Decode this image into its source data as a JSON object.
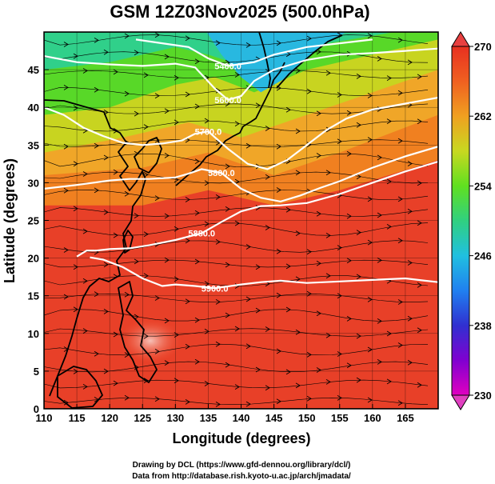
{
  "chart_data": {
    "type": "heatmap",
    "title": "GSM 12Z03Nov2025 (500.0hPa)",
    "xlabel": "Longitude (degrees)",
    "ylabel": "Latitude  (degrees)",
    "xlim": [
      110,
      170
    ],
    "ylim": [
      0,
      50
    ],
    "x_ticks": [
      "110",
      "115",
      "120",
      "125",
      "130",
      "135",
      "140",
      "145",
      "150",
      "155",
      "160",
      "165"
    ],
    "y_ticks": [
      "0",
      "5",
      "10",
      "15",
      "20",
      "25",
      "30",
      "35",
      "40",
      "45"
    ],
    "grid": true,
    "colorbar": {
      "position": "right",
      "min": 230,
      "max": 270,
      "ticks": [
        "270",
        "262",
        "254",
        "246",
        "238",
        "230"
      ],
      "colors": [
        "#e000c0",
        "#4020d0",
        "#2080f0",
        "#20c0e0",
        "#30d080",
        "#50e020",
        "#c0d820",
        "#f0a020",
        "#f06020",
        "#e83020"
      ]
    },
    "contours": [
      {
        "label": "5400.0",
        "points": [
          [
            124,
            49
          ],
          [
            128,
            48.5
          ],
          [
            132,
            48
          ],
          [
            135,
            46.5
          ],
          [
            138,
            45.5
          ],
          [
            142,
            46
          ],
          [
            145,
            47
          ],
          [
            150,
            48
          ],
          [
            155,
            48.5
          ],
          [
            160,
            49
          ]
        ]
      },
      {
        "label": "5600.0",
        "points": [
          [
            110,
            46.8
          ],
          [
            115,
            46
          ],
          [
            120,
            45.7
          ],
          [
            125,
            45.5
          ],
          [
            130,
            45.8
          ],
          [
            133,
            45.3
          ],
          [
            136,
            42.5
          ],
          [
            138,
            41
          ],
          [
            140,
            41.5
          ],
          [
            142,
            43.5
          ],
          [
            145,
            45
          ],
          [
            150,
            46.3
          ],
          [
            155,
            47
          ],
          [
            160,
            47.2
          ],
          [
            165,
            47.5
          ],
          [
            170,
            47.8
          ]
        ]
      },
      {
        "label": "5700.0",
        "points": [
          [
            110,
            40
          ],
          [
            113,
            39
          ],
          [
            116,
            37.3
          ],
          [
            119,
            36.2
          ],
          [
            122,
            35.3
          ],
          [
            125,
            35
          ],
          [
            128,
            35.2
          ],
          [
            131,
            35.6
          ],
          [
            133,
            36.5
          ],
          [
            135,
            36.8
          ],
          [
            138,
            34.5
          ],
          [
            141,
            32.5
          ],
          [
            144,
            31.8
          ],
          [
            147,
            33
          ],
          [
            150,
            35
          ],
          [
            153,
            37
          ],
          [
            156,
            38.5
          ],
          [
            160,
            39.7
          ],
          [
            165,
            40.5
          ],
          [
            170,
            41.3
          ]
        ]
      },
      {
        "label": "5800.0",
        "points": [
          [
            110,
            29.2
          ],
          [
            115,
            29.7
          ],
          [
            120,
            30.3
          ],
          [
            123,
            30.5
          ],
          [
            126,
            30.5
          ],
          [
            130,
            30.7
          ],
          [
            132,
            31.2
          ],
          [
            134,
            31.8
          ],
          [
            137,
            31.3
          ],
          [
            140,
            29.2
          ],
          [
            143,
            28
          ],
          [
            146,
            27.5
          ],
          [
            149,
            28.3
          ],
          [
            152,
            29.3
          ],
          [
            155,
            30.2
          ],
          [
            160,
            32
          ],
          [
            165,
            33.5
          ],
          [
            170,
            34.8
          ]
        ]
      },
      {
        "label": "5880.0",
        "points": [
          [
            115,
            20.2
          ],
          [
            116.5,
            21
          ],
          [
            118,
            21
          ],
          [
            120,
            21.2
          ],
          [
            123,
            21.3
          ],
          [
            126,
            21.7
          ],
          [
            130,
            22.4
          ],
          [
            134,
            23.3
          ],
          [
            137,
            24.8
          ],
          [
            140,
            26.2
          ],
          [
            143,
            26.9
          ],
          [
            146,
            27
          ],
          [
            150,
            27.3
          ],
          [
            155,
            28.5
          ],
          [
            160,
            30
          ],
          [
            165,
            31.5
          ],
          [
            170,
            32.8
          ]
        ]
      },
      {
        "label": "5900.0",
        "points": [
          [
            117,
            20.1
          ],
          [
            119,
            19.8
          ],
          [
            122,
            18.8
          ],
          [
            125,
            17.3
          ],
          [
            128,
            16.3
          ],
          [
            130,
            16.5
          ],
          [
            133,
            16.3
          ],
          [
            136,
            16
          ],
          [
            140,
            16.5
          ],
          [
            143,
            16.8
          ],
          [
            146,
            17
          ],
          [
            150,
            16.7
          ],
          [
            155,
            16.9
          ],
          [
            160,
            17.1
          ],
          [
            165,
            17.3
          ],
          [
            168,
            17
          ],
          [
            170,
            16.8
          ]
        ]
      }
    ]
  },
  "credits": {
    "line1": "Drawing by DCL (https://www.gfd-dennou.org/library/dcl/)",
    "line2": "Data from http://database.rish.kyoto-u.ac.jp/arch/jmadata/"
  }
}
